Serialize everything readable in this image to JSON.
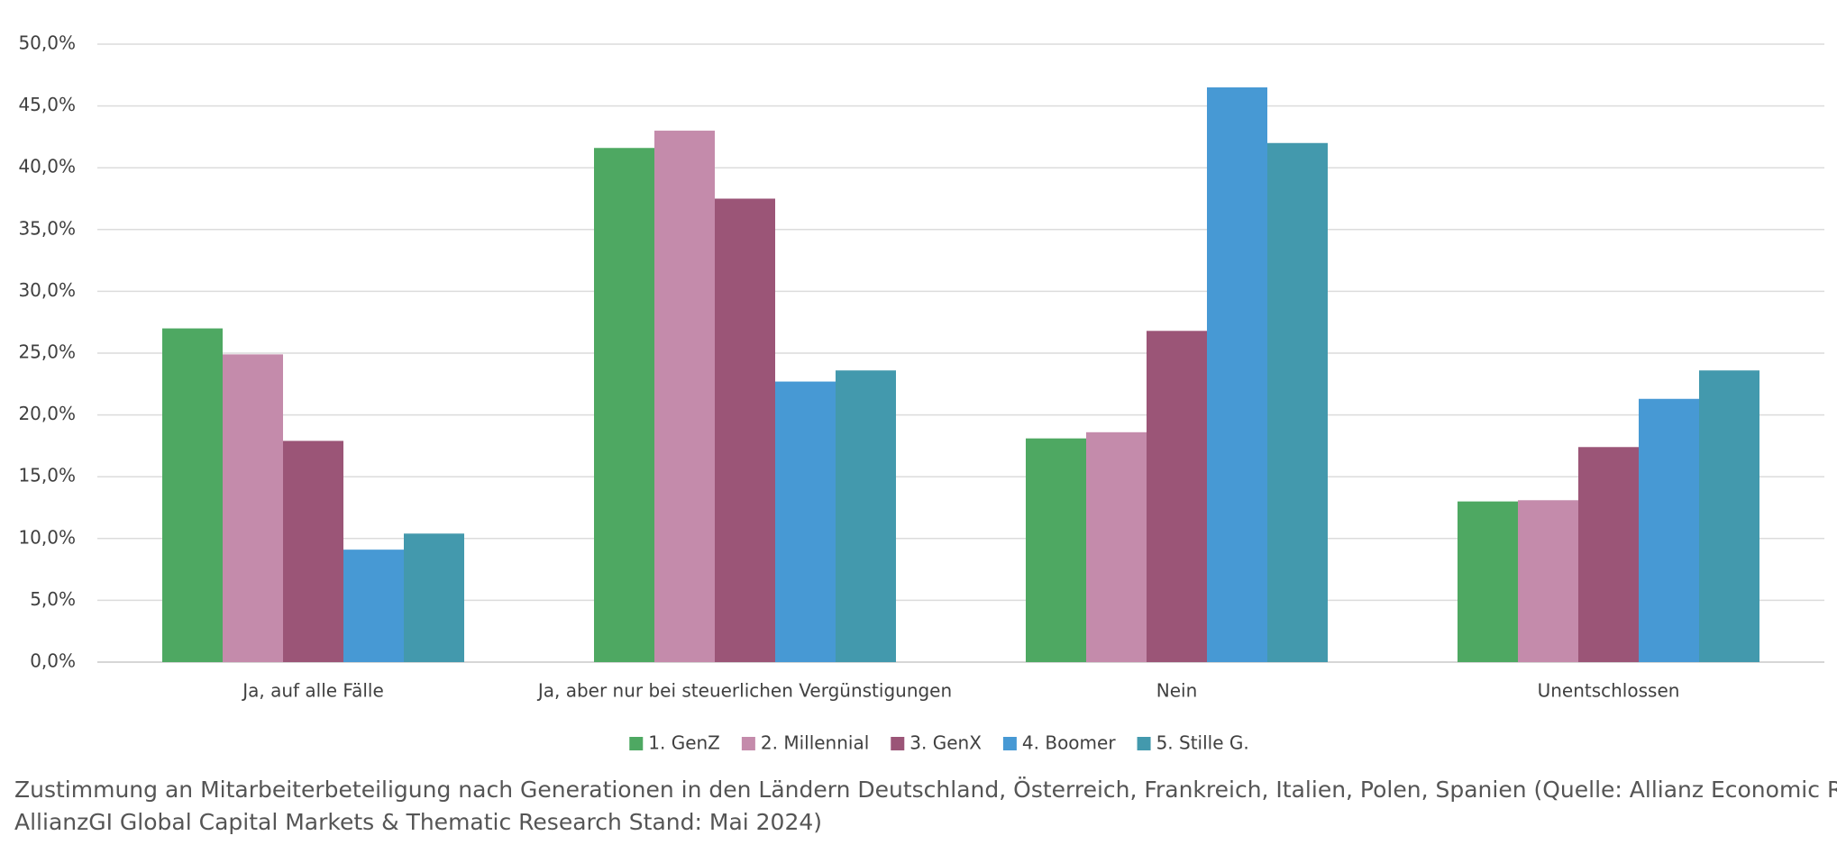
{
  "chart_data": {
    "type": "bar",
    "categories": [
      "Ja, auf alle Fälle",
      "Ja, aber nur bei steuerlichen Vergünstigungen",
      "Nein",
      "Unentschlossen"
    ],
    "series": [
      {
        "name": "1. GenZ",
        "color": "#4ea862",
        "values": [
          27.0,
          41.6,
          18.1,
          13.0
        ]
      },
      {
        "name": "2. Millennial",
        "color": "#c48bab",
        "values": [
          24.9,
          43.0,
          18.6,
          13.1
        ]
      },
      {
        "name": "3. GenX",
        "color": "#9b5577",
        "values": [
          17.9,
          37.5,
          26.8,
          17.4
        ]
      },
      {
        "name": "4. Boomer",
        "color": "#4799d4",
        "values": [
          9.1,
          22.7,
          46.5,
          21.3
        ]
      },
      {
        "name": "5. Stille G.",
        "color": "#4399ad",
        "values": [
          10.4,
          23.6,
          42.0,
          23.6
        ]
      }
    ],
    "ylim": [
      0,
      50
    ],
    "yticks": [
      {
        "value": 0,
        "label": "0,0%"
      },
      {
        "value": 5,
        "label": "5,0%"
      },
      {
        "value": 10,
        "label": "10,0%"
      },
      {
        "value": 15,
        "label": "15,0%"
      },
      {
        "value": 20,
        "label": "20,0%"
      },
      {
        "value": 25,
        "label": "25,0%"
      },
      {
        "value": 30,
        "label": "30,0%"
      },
      {
        "value": 35,
        "label": "35,0%"
      },
      {
        "value": 40,
        "label": "40,0%"
      },
      {
        "value": 45,
        "label": "45,0%"
      },
      {
        "value": 50,
        "label": "50,0%"
      }
    ],
    "grid": true,
    "legend": "bottom",
    "caption": [
      "Zustimmung an Mitarbeiterbeteiligung nach Generationen in den Ländern Deutschland, Österreich, Frankreich, Italien, Polen, Spanien (Quelle: Allianz Economic Research,",
      "AllianzGI Global Capital Markets & Thematic Research Stand: Mai 2024)"
    ]
  }
}
